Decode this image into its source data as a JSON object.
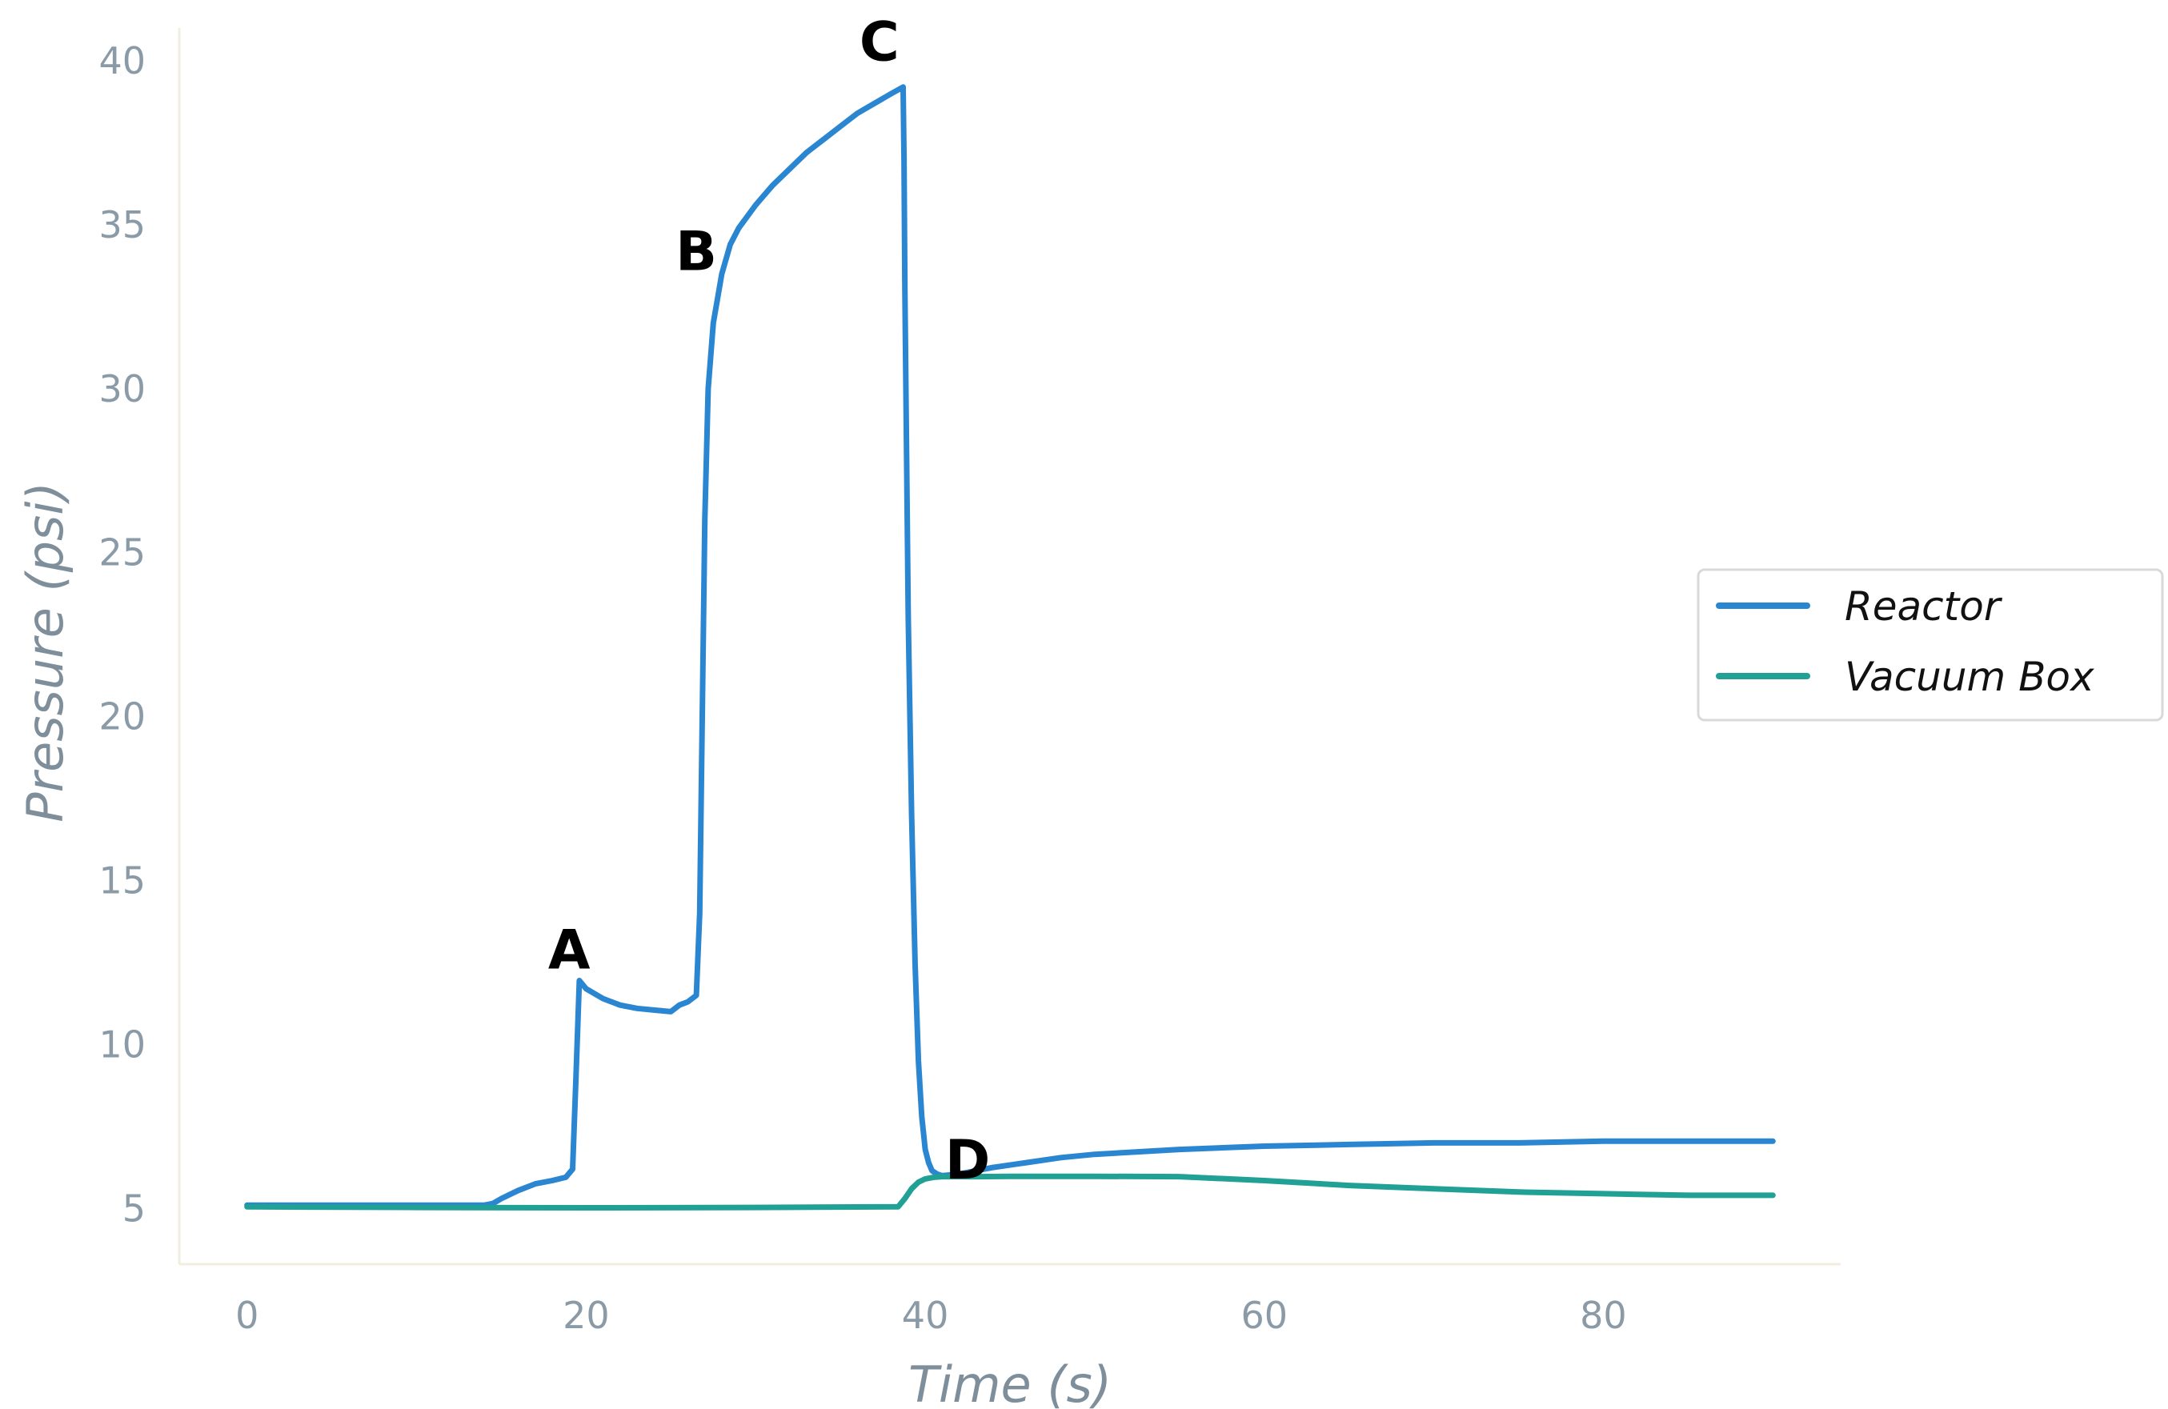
{
  "chart_data": {
    "type": "line",
    "xlabel": "Time (s)",
    "ylabel": "Pressure (psi)",
    "xlim": [
      -4,
      94
    ],
    "ylim": [
      3.3,
      41
    ],
    "x_ticks": [
      0,
      20,
      40,
      60,
      80
    ],
    "y_ticks": [
      5,
      10,
      15,
      20,
      25,
      30,
      35,
      40
    ],
    "grid": false,
    "legend_position": "right",
    "colors": {
      "Reactor": "#2a86d1",
      "Vacuum Box": "#21a095",
      "axis": "#f2eedd",
      "tick_text": "#8a9aa6",
      "axis_label_text": "#7e8e9a"
    },
    "series": [
      {
        "name": "Reactor",
        "x": [
          0,
          14,
          14.5,
          15,
          16,
          17,
          18,
          18.8,
          19.2,
          19.4,
          19.6,
          20,
          21,
          22,
          23,
          24,
          25,
          25.5,
          26,
          26.5,
          26.7,
          26.85,
          27,
          27.2,
          27.5,
          28,
          28.5,
          29,
          30,
          31,
          32,
          33,
          34,
          35,
          36,
          37,
          38,
          38.7,
          38.75,
          38.8,
          38.9,
          39,
          39.2,
          39.4,
          39.6,
          39.8,
          40,
          40.2,
          40.4,
          40.7,
          41,
          42,
          44,
          46,
          48,
          50,
          55,
          60,
          65,
          70,
          75,
          80,
          85,
          90
        ],
        "y": [
          5.1,
          5.1,
          5.15,
          5.3,
          5.55,
          5.75,
          5.85,
          5.95,
          6.2,
          9.0,
          11.95,
          11.7,
          11.4,
          11.2,
          11.1,
          11.05,
          11.0,
          11.2,
          11.3,
          11.5,
          14.0,
          20.0,
          26.0,
          30.0,
          32.0,
          33.5,
          34.4,
          34.9,
          35.6,
          36.2,
          36.7,
          37.2,
          37.6,
          38.0,
          38.4,
          38.7,
          39.0,
          39.2,
          37.0,
          33.0,
          28.0,
          23.0,
          17.0,
          12.5,
          9.5,
          7.8,
          6.8,
          6.4,
          6.15,
          6.05,
          6.0,
          6.05,
          6.25,
          6.4,
          6.55,
          6.65,
          6.8,
          6.9,
          6.95,
          7.0,
          7.0,
          7.05,
          7.05,
          7.05
        ]
      },
      {
        "name": "Vacuum Box",
        "x": [
          0,
          10,
          20,
          30,
          38.4,
          38.8,
          39.2,
          39.6,
          40,
          40.5,
          41,
          43,
          45,
          50,
          55,
          60,
          65,
          70,
          75,
          80,
          85,
          90
        ],
        "y": [
          5.05,
          5.03,
          5.02,
          5.03,
          5.05,
          5.3,
          5.6,
          5.8,
          5.9,
          5.95,
          5.97,
          5.97,
          5.98,
          5.98,
          5.97,
          5.85,
          5.7,
          5.6,
          5.5,
          5.45,
          5.4,
          5.4
        ]
      }
    ],
    "annotations": [
      {
        "text": "A",
        "x": 19.0,
        "y": 12.9
      },
      {
        "text": "B",
        "x": 26.5,
        "y": 34.2
      },
      {
        "text": "C",
        "x": 37.3,
        "y": 40.6
      },
      {
        "text": "D",
        "x": 42.5,
        "y": 6.5
      }
    ]
  }
}
